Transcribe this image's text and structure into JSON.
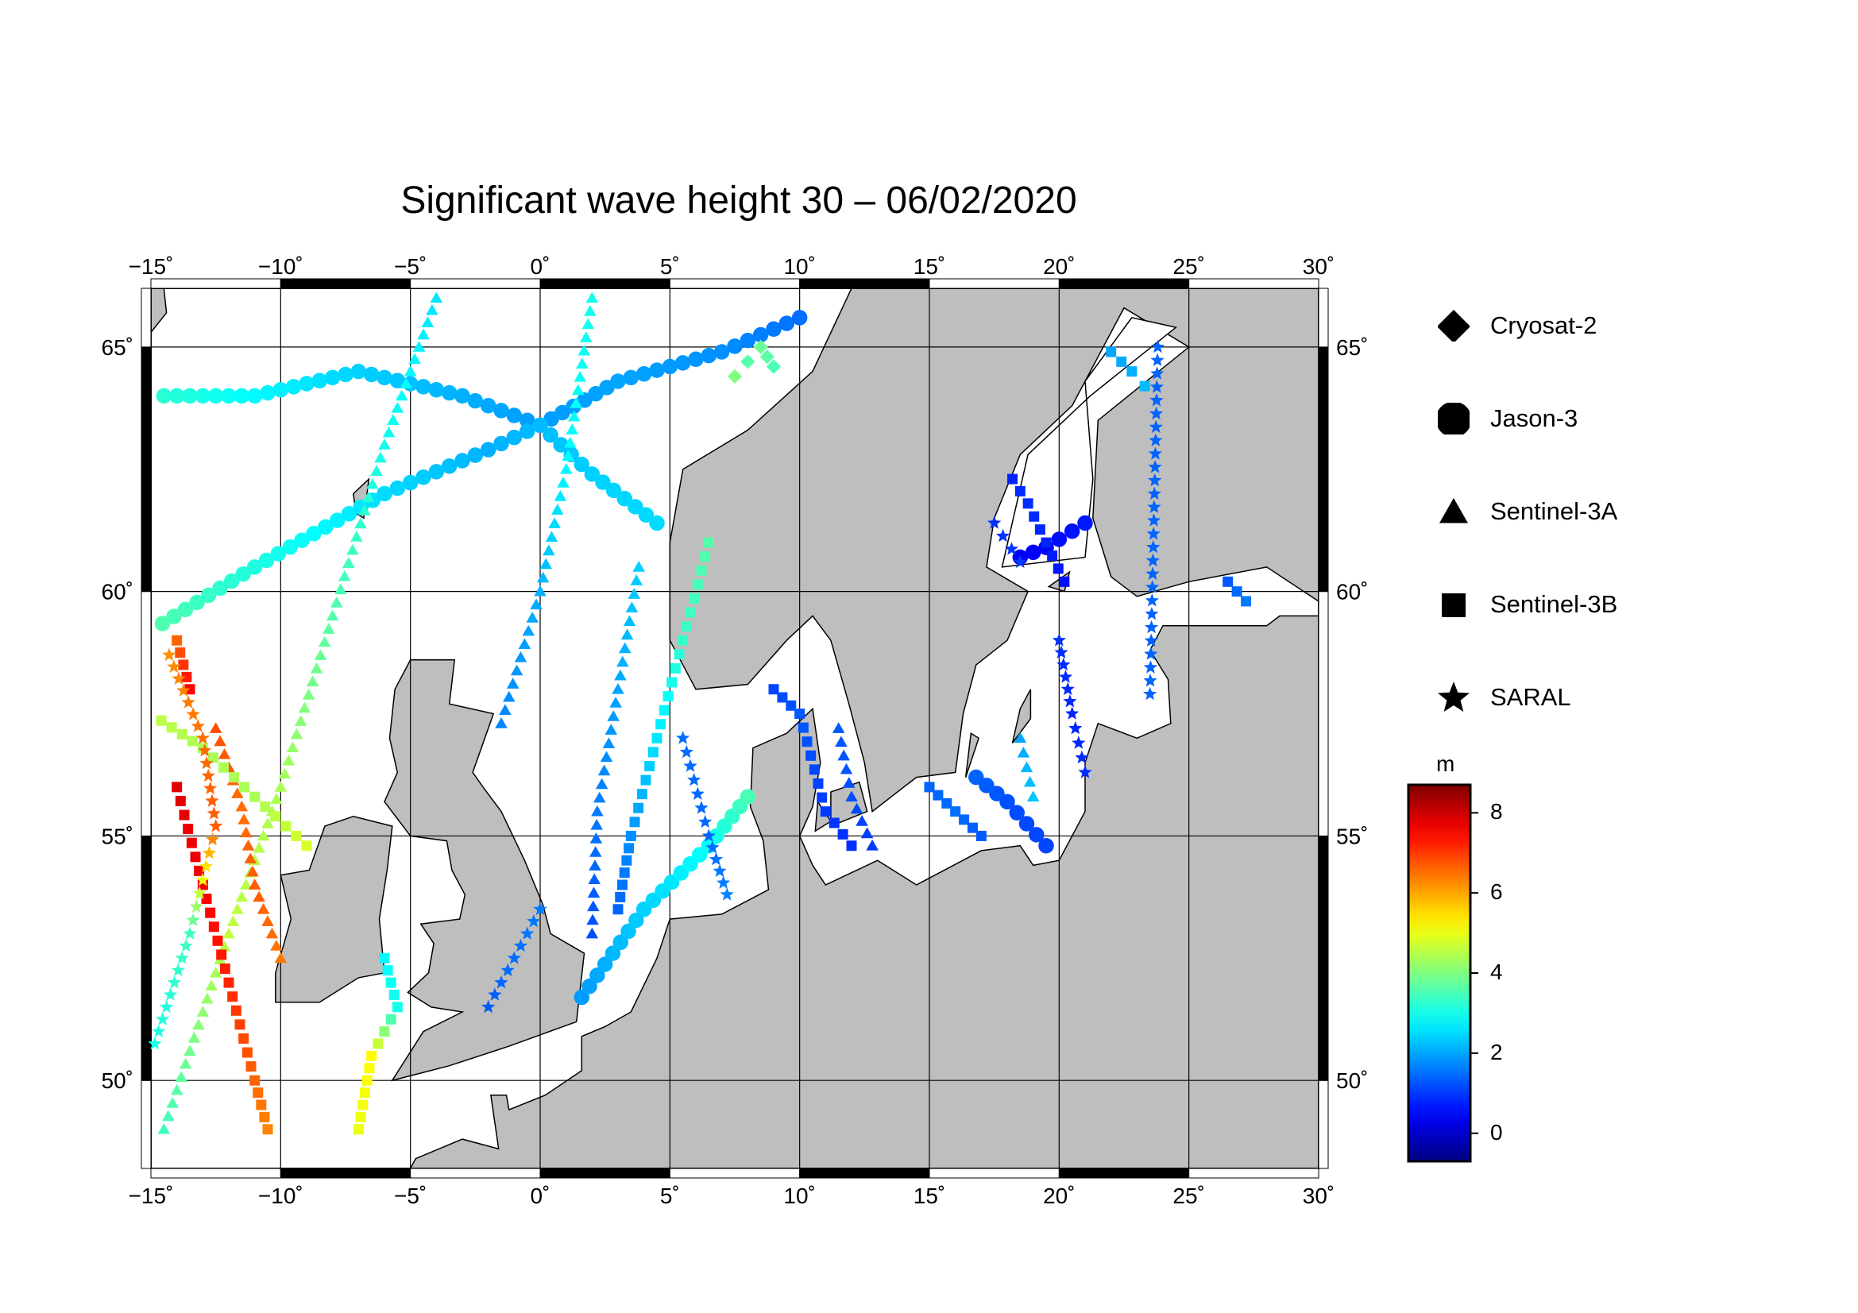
{
  "title": "Significant wave height 30 – 06/02/2020",
  "map": {
    "lon_range": [
      -15,
      30
    ],
    "lat_range": [
      48.2,
      66.2
    ],
    "lon_ticks": [
      -15,
      -10,
      -5,
      0,
      5,
      10,
      15,
      20,
      25,
      30
    ],
    "lat_ticks": [
      50,
      55,
      60,
      65
    ],
    "lon_labels": [
      "−15˚",
      "−10˚",
      "−5˚",
      "0˚",
      "5˚",
      "10˚",
      "15˚",
      "20˚",
      "25˚",
      "30˚"
    ],
    "lat_labels": [
      "50˚",
      "55˚",
      "60˚",
      "65˚"
    ],
    "land_color": "#bebebe",
    "sea_color": "#ffffff",
    "grid": true
  },
  "legend": [
    {
      "symbol": "diamond-icon",
      "label": "Cryosat-2"
    },
    {
      "symbol": "circle-icon",
      "label": "Jason-3"
    },
    {
      "symbol": "triangle-icon",
      "label": "Sentinel-3A"
    },
    {
      "symbol": "square-icon",
      "label": "Sentinel-3B"
    },
    {
      "symbol": "star-icon",
      "label": "SARAL"
    }
  ],
  "colorbar": {
    "unit": "m",
    "range": [
      -0.7,
      8.7
    ],
    "ticks": [
      0,
      2,
      4,
      6,
      8
    ],
    "tick_labels": [
      "0",
      "2",
      "4",
      "6",
      "8"
    ],
    "colormap": "jet"
  },
  "chart_data": {
    "type": "scatter",
    "description_units": "lon (deg E), lat (deg N), significant wave height (m)",
    "tracks": [
      {
        "satellite": "Jason-3",
        "symbol": "circle",
        "points": [
          [
            -14.5,
            64.0,
            3.2
          ],
          [
            -11,
            64.0,
            2.8
          ],
          [
            -7,
            64.5,
            2.4
          ],
          [
            -3,
            64,
            2.1
          ],
          [
            0,
            63.4,
            1.9
          ],
          [
            3,
            64.3,
            2.0
          ],
          [
            7,
            64.9,
            1.8
          ],
          [
            10,
            65.6,
            1.5
          ]
        ]
      },
      {
        "satellite": "Jason-3",
        "symbol": "circle",
        "points": [
          [
            -15,
            59.2,
            3.6
          ],
          [
            -11,
            60.5,
            3.1
          ],
          [
            -6,
            62.0,
            2.5
          ],
          [
            -2,
            62.9,
            2.1
          ],
          [
            0,
            63.4,
            2.2
          ],
          [
            2,
            62.4,
            2.4
          ],
          [
            4.5,
            61.4,
            2.5
          ]
        ]
      },
      {
        "satellite": "Jason-3",
        "symbol": "circle",
        "points": [
          [
            1.6,
            51.7,
            1.9
          ],
          [
            4,
            53.5,
            2.4
          ],
          [
            6.5,
            54.8,
            2.9
          ],
          [
            8.0,
            55.8,
            3.5
          ]
        ]
      },
      {
        "satellite": "Jason-3",
        "symbol": "circle",
        "points": [
          [
            16.8,
            56.2,
            1.4
          ],
          [
            18,
            55.7,
            1.2
          ],
          [
            19.5,
            54.8,
            1.1
          ]
        ]
      },
      {
        "satellite": "Jason-3",
        "symbol": "circle",
        "points": [
          [
            18.5,
            60.7,
            0.4
          ],
          [
            19.5,
            60.9,
            0.5
          ],
          [
            21,
            61.4,
            0.7
          ]
        ]
      },
      {
        "satellite": "Sentinel-3A",
        "symbol": "triangle",
        "points": [
          [
            -14.5,
            49.0,
            3.4
          ],
          [
            -12,
            53.0,
            4.6
          ],
          [
            -10,
            56,
            4.4
          ],
          [
            -8,
            59.5,
            3.6
          ],
          [
            -6,
            63,
            3.0
          ],
          [
            -4,
            66,
            2.6
          ]
        ]
      },
      {
        "satellite": "Sentinel-3A",
        "symbol": "triangle",
        "points": [
          [
            -12.5,
            57.2,
            6.8
          ],
          [
            -11.5,
            55.6,
            6.5
          ],
          [
            -11,
            54.0,
            6.7
          ],
          [
            -10,
            52.5,
            6.4
          ]
        ]
      },
      {
        "satellite": "Sentinel-3A",
        "symbol": "triangle",
        "points": [
          [
            -1.5,
            57.3,
            1.7
          ],
          [
            0,
            60,
            2.1
          ],
          [
            1,
            62.5,
            2.8
          ],
          [
            2,
            66,
            3.0
          ]
        ]
      },
      {
        "satellite": "Sentinel-3A",
        "symbol": "triangle",
        "points": [
          [
            2,
            53.0,
            1.2
          ],
          [
            2.2,
            55.5,
            1.6
          ],
          [
            3.0,
            58.0,
            2.0
          ],
          [
            3.8,
            60.5,
            2.4
          ]
        ]
      },
      {
        "satellite": "Sentinel-3A",
        "symbol": "triangle",
        "points": [
          [
            11.5,
            57.2,
            1.3
          ],
          [
            12,
            55.8,
            1.2
          ],
          [
            12.8,
            54.8,
            1.0
          ]
        ]
      },
      {
        "satellite": "Sentinel-3A",
        "symbol": "triangle",
        "points": [
          [
            18.5,
            57.0,
            2.0
          ],
          [
            19,
            55.8,
            2.3
          ]
        ]
      },
      {
        "satellite": "Sentinel-3B",
        "symbol": "square",
        "points": [
          [
            -14,
            56.0,
            7.8
          ],
          [
            -13,
            54,
            7.6
          ],
          [
            -12,
            52,
            7.2
          ],
          [
            -11,
            50,
            6.6
          ],
          [
            -10.5,
            49,
            6.3
          ]
        ]
      },
      {
        "satellite": "Sentinel-3B",
        "symbol": "square",
        "points": [
          [
            -14,
            59.0,
            6.6
          ],
          [
            -13.5,
            58,
            7.5
          ]
        ]
      },
      {
        "satellite": "Sentinel-3B",
        "symbol": "square",
        "points": [
          [
            -15,
            57.5,
            4.6
          ],
          [
            -13,
            56.8,
            4.4
          ],
          [
            -11,
            55.8,
            4.4
          ],
          [
            -9,
            54.8,
            4.8
          ]
        ]
      },
      {
        "satellite": "Sentinel-3B",
        "symbol": "square",
        "points": [
          [
            -6,
            52.5,
            2.8
          ],
          [
            -5.5,
            51.5,
            3.0
          ],
          [
            -6.5,
            50.5,
            5.2
          ],
          [
            -7,
            49.0,
            5.0
          ]
        ]
      },
      {
        "satellite": "Sentinel-3B",
        "symbol": "square",
        "points": [
          [
            3.0,
            53.5,
            1.4
          ],
          [
            3.5,
            55,
            1.8
          ],
          [
            4.5,
            57,
            2.6
          ],
          [
            5.5,
            59,
            3.3
          ],
          [
            6.5,
            61,
            3.6
          ]
        ]
      },
      {
        "satellite": "Sentinel-3B",
        "symbol": "square",
        "points": [
          [
            9,
            58.0,
            1.1
          ],
          [
            10,
            57.5,
            1.3
          ],
          [
            11,
            55.5,
            1.0
          ],
          [
            12,
            54.8,
            0.9
          ]
        ]
      },
      {
        "satellite": "Sentinel-3B",
        "symbol": "square",
        "points": [
          [
            15,
            56.0,
            1.4
          ],
          [
            16,
            55.5,
            1.5
          ],
          [
            17,
            55,
            1.3
          ]
        ]
      },
      {
        "satellite": "Sentinel-3B",
        "symbol": "square",
        "points": [
          [
            18.2,
            62.3,
            0.8
          ],
          [
            18.8,
            61.8,
            0.9
          ],
          [
            19.5,
            61.0,
            0.8
          ],
          [
            20.2,
            60.2,
            0.6
          ]
        ]
      },
      {
        "satellite": "Sentinel-3B",
        "symbol": "square",
        "points": [
          [
            22.0,
            64.9,
            2.0
          ],
          [
            22.8,
            64.5,
            2.1
          ],
          [
            23.3,
            64.2,
            2.2
          ]
        ]
      },
      {
        "satellite": "Sentinel-3B",
        "symbol": "square",
        "points": [
          [
            26.5,
            60.2,
            1.3
          ],
          [
            27.2,
            59.8,
            1.6
          ]
        ]
      },
      {
        "satellite": "SARAL",
        "symbol": "star",
        "points": [
          [
            -15,
            50.5,
            3.0
          ],
          [
            -13.5,
            53,
            3.4
          ],
          [
            -12.5,
            55.2,
            6.7
          ],
          [
            -13,
            57,
            6.5
          ],
          [
            -14.3,
            58.7,
            6.2
          ]
        ]
      },
      {
        "satellite": "SARAL",
        "symbol": "star",
        "points": [
          [
            -2,
            51.5,
            1.3
          ],
          [
            -1,
            52.5,
            1.5
          ],
          [
            0,
            53.5,
            1.6
          ]
        ]
      },
      {
        "satellite": "SARAL",
        "symbol": "star",
        "points": [
          [
            5.5,
            57.0,
            1.5
          ],
          [
            6.5,
            55.0,
            1.4
          ],
          [
            7.2,
            53.8,
            1.7
          ]
        ]
      },
      {
        "satellite": "SARAL",
        "symbol": "star",
        "points": [
          [
            17.5,
            61.4,
            0.9
          ],
          [
            18.5,
            60.6,
            1.0
          ]
        ]
      },
      {
        "satellite": "SARAL",
        "symbol": "star",
        "points": [
          [
            20,
            59.0,
            0.9
          ],
          [
            20.5,
            57.5,
            0.8
          ],
          [
            21,
            56.3,
            0.9
          ]
        ]
      },
      {
        "satellite": "SARAL",
        "symbol": "star",
        "points": [
          [
            23.5,
            57.9,
            1.4
          ],
          [
            23.8,
            65.0,
            1.4
          ]
        ]
      },
      {
        "satellite": "Cryosat-2",
        "symbol": "diamond",
        "points": [
          [
            7.5,
            64.4,
            4.0
          ],
          [
            8,
            64.7,
            3.6
          ],
          [
            8.5,
            65.0,
            3.8
          ],
          [
            9,
            64.6,
            3.5
          ]
        ]
      }
    ]
  }
}
